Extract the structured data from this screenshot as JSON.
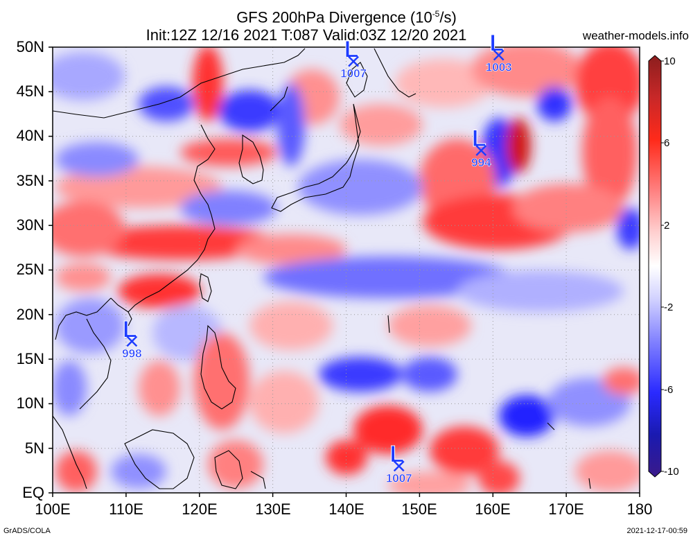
{
  "header": {
    "title": "GFS 200hPa Divergence (10",
    "title_exp": "-5",
    "title_unit": "/s)",
    "subtitle": "Init:12Z 12/16 2021 T:087 Valid:03Z 12/20 2021",
    "site": "weather-models.info"
  },
  "footer": {
    "left": "GrADS/COLA",
    "right": "2021-12-17-00:59"
  },
  "map": {
    "lat_labels": [
      "50N",
      "45N",
      "40N",
      "35N",
      "30N",
      "25N",
      "20N",
      "15N",
      "10N",
      "5N",
      "EQ"
    ],
    "lon_labels": [
      "100E",
      "110E",
      "120E",
      "130E",
      "140E",
      "150E",
      "160E",
      "170E",
      "180"
    ]
  },
  "colorbar": {
    "labels": [
      "10",
      "6",
      "2",
      "-2",
      "-6",
      "-10"
    ],
    "colors": [
      "#8b1e1e",
      "#c82828",
      "#ff2a1a",
      "#ff8080",
      "#ffd0d0",
      "#ffffff",
      "#d0d0ff",
      "#8080ff",
      "#2a2aff",
      "#1a1ab0",
      "#3a1a8a"
    ]
  },
  "lows": [
    {
      "label": "L",
      "pressure": "1007",
      "lon": 141,
      "lat": 48.4
    },
    {
      "label": "L",
      "pressure": "1003",
      "lon": 160.8,
      "lat": 49.1
    },
    {
      "label": "L",
      "pressure": "994",
      "lon": 158.4,
      "lat": 38.4
    },
    {
      "label": "L",
      "pressure": "998",
      "lon": 110.8,
      "lat": 17.0
    },
    {
      "label": "L",
      "pressure": "1007",
      "lon": 147.2,
      "lat": 3.0
    }
  ],
  "colors": {
    "low_marker": "#1e3cff",
    "coast": "#000000",
    "grid": "#9a9a9a"
  }
}
